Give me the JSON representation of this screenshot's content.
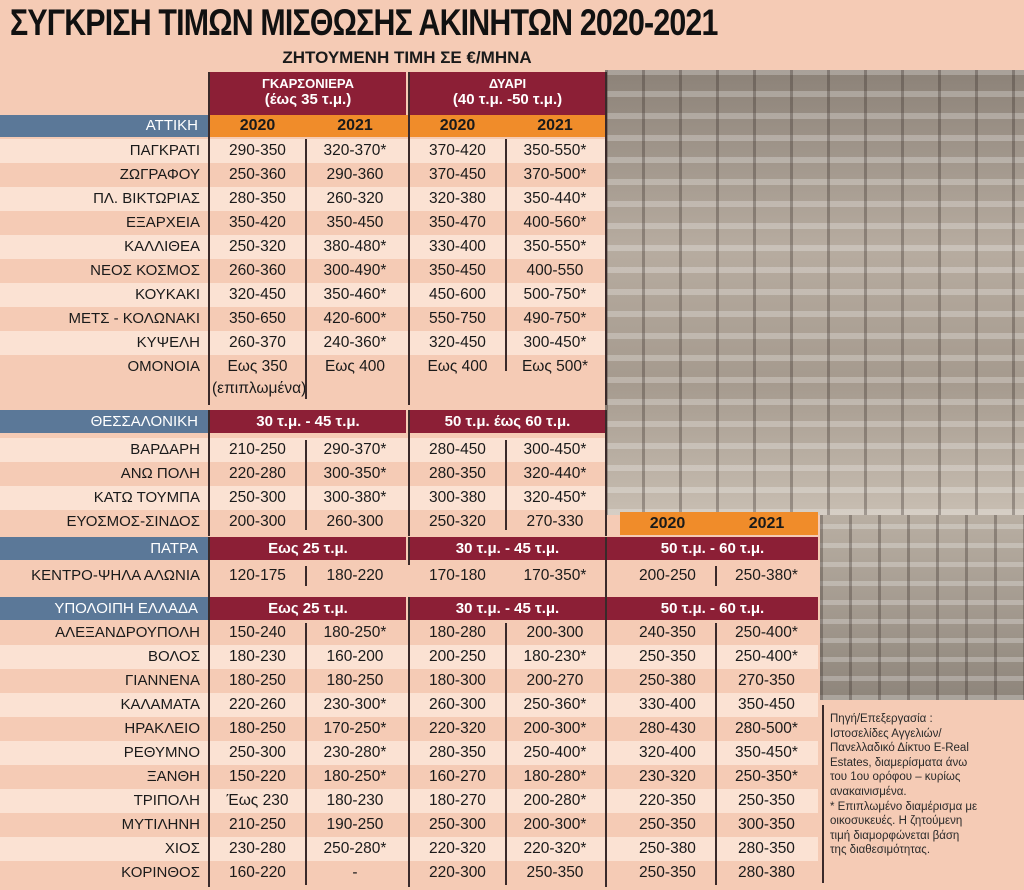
{
  "title": "ΣΥΓΚΡΙΣΗ ΤΙΜΩΝ ΜΙΣΘΩΣΗΣ ΑΚΙΝΗΤΩΝ 2020-2021",
  "subtitle": "ΖΗΤΟΥΜΕΝΗ ΤΙΜΗ ΣΕ €/ΜΗΝΑ",
  "colors": {
    "maroon": "#8c1f36",
    "blue": "#5b7898",
    "orange": "#f08c2a",
    "background": "#f5cbb5"
  },
  "headers": {
    "garsoniera": "ΓΚΑΡΣΟΝΙΕΡΑ",
    "garsoniera_size": "(έως 35 τ.μ.)",
    "dyari": "ΔΥΑΡΙ",
    "dyari_size": "(40 τ.μ. -50 τ.μ.)",
    "year1": "2020",
    "year2": "2021"
  },
  "attiki": {
    "label": "ΑΤΤΙΚΗ",
    "rows": [
      [
        "ΠΑΓΚΡΑΤΙ",
        "290-350",
        "320-370*",
        "370-420",
        "350-550*"
      ],
      [
        "ΖΩΓΡΑΦΟΥ",
        "250-360",
        "290-360",
        "370-450",
        "370-500*"
      ],
      [
        "ΠΛ. ΒΙΚΤΩΡΙΑΣ",
        "280-350",
        "260-320",
        "320-380",
        "350-440*"
      ],
      [
        "ΕΞΑΡΧΕΙΑ",
        "350-420",
        "350-450",
        "350-470",
        "400-560*"
      ],
      [
        "ΚΑΛΛΙΘΕΑ",
        "250-320",
        "380-480*",
        "330-400",
        "350-550*"
      ],
      [
        "ΝΕΟΣ ΚΟΣΜΟΣ",
        "260-360",
        "300-490*",
        "350-450",
        "400-550"
      ],
      [
        "ΚΟΥΚΑΚΙ",
        "320-450",
        "350-460*",
        "450-600",
        "500-750*"
      ],
      [
        "ΜΕΤΣ  - ΚΟΛΩΝΑΚΙ",
        "350-650",
        "420-600*",
        "550-750",
        "490-750*"
      ],
      [
        "ΚΥΨΕΛΗ",
        "260-370",
        "240-360*",
        "320-450",
        "300-450*"
      ],
      [
        "ΟΜΟΝΟΙΑ",
        "Εως 350",
        "Εως 400",
        "Εως 400",
        "Εως 500*"
      ]
    ],
    "omonoia_note": "(επιπλωμένα)"
  },
  "thessaloniki": {
    "label": "ΘΕΣΣΑΛΟΝΙΚΗ",
    "size1": "30 τ.μ. - 45 τ.μ.",
    "size2": "50 τ.μ. έως 60 τ.μ.",
    "rows": [
      [
        "ΒΑΡΔΑΡΗ",
        "210-250",
        "290-370*",
        "280-450",
        "300-450*"
      ],
      [
        "ΑΝΩ ΠΟΛΗ",
        "220-280",
        "300-350*",
        "280-350",
        "320-440*"
      ],
      [
        "ΚΑΤΩ ΤΟΥΜΠΑ",
        "250-300",
        "300-380*",
        "300-380",
        "320-450*"
      ],
      [
        "ΕΥΟΣΜΟΣ-ΣΙΝΔΟΣ",
        "200-300",
        "260-300",
        "250-320",
        "270-330"
      ]
    ]
  },
  "patra": {
    "label": "ΠΑΤΡΑ",
    "size1": "Εως 25 τ.μ.",
    "size2": "30 τ.μ. - 45 τ.μ.",
    "size3": "50 τ.μ. - 60 τ.μ.",
    "rows": [
      [
        "ΚΕΝΤΡΟ-ΨΗΛΑ ΑΛΩΝΙΑ",
        "120-175",
        "180-220",
        "170-180",
        "170-350*",
        "200-250",
        "250-380*"
      ]
    ]
  },
  "rest": {
    "label": "ΥΠΟΛΟΙΠΗ ΕΛΛΑΔΑ",
    "size1": "Εως 25 τ.μ.",
    "size2": "30 τ.μ. - 45 τ.μ.",
    "size3": "50 τ.μ. - 60 τ.μ.",
    "rows": [
      [
        "ΑΛΕΞΑΝΔΡΟΥΠΟΛΗ",
        "150-240",
        "180-250*",
        "180-280",
        "200-300",
        "240-350",
        "250-400*"
      ],
      [
        "ΒΟΛΟΣ",
        "180-230",
        "160-200",
        "200-250",
        "180-230*",
        "250-350",
        "250-400*"
      ],
      [
        "ΓΙΑΝΝΕΝΑ",
        "180-250",
        "180-250",
        "180-300",
        "200-270",
        "250-380",
        "270-350"
      ],
      [
        "ΚΑΛΑΜΑΤΑ",
        "220-260",
        "230-300*",
        "260-300",
        "250-360*",
        "330-400",
        "350-450"
      ],
      [
        "ΗΡΑΚΛΕΙΟ",
        "180-250",
        "170-250*",
        "220-320",
        "200-300*",
        "280-430",
        "280-500*"
      ],
      [
        "ΡΕΘΥΜΝΟ",
        "250-300",
        "230-280*",
        "280-350",
        "250-400*",
        "320-400",
        "350-450*"
      ],
      [
        "ΞΑΝΘΗ",
        "150-220",
        "180-250*",
        "160-270",
        "180-280*",
        "230-320",
        "250-350*"
      ],
      [
        "ΤΡΙΠΟΛΗ",
        "Έως 230",
        "180-230",
        "180-270",
        "200-280*",
        "220-350",
        "250-350"
      ],
      [
        "ΜΥΤΙΛΗΝΗ",
        "210-250",
        "190-250",
        "250-300",
        "200-300*",
        "250-350",
        "300-350"
      ],
      [
        "ΧΙΟΣ",
        "230-280",
        "250-280*",
        "220-320",
        "220-320*",
        "250-380",
        "280-350"
      ],
      [
        "ΚΟΡΙΝΘΟΣ",
        "160-220",
        "-",
        "220-300",
        "250-350",
        "250-350",
        "280-380"
      ]
    ]
  },
  "note": [
    "Πηγή/Επεξεργασία :",
    "Ιστοσελίδες Αγγελιών/",
    "Πανελλαδικό Δίκτυο E-Real",
    "Estates, διαμερίσματα άνω",
    "του 1ου ορόφου – κυρίως",
    "ανακαινισμένα.",
    "* Επιπλωμένο διαμέρισμα με",
    "οικοσυκευές. Η ζητούμενη",
    "τιμή διαμορφώνεται βάση",
    "της διαθεσιμότητας."
  ]
}
